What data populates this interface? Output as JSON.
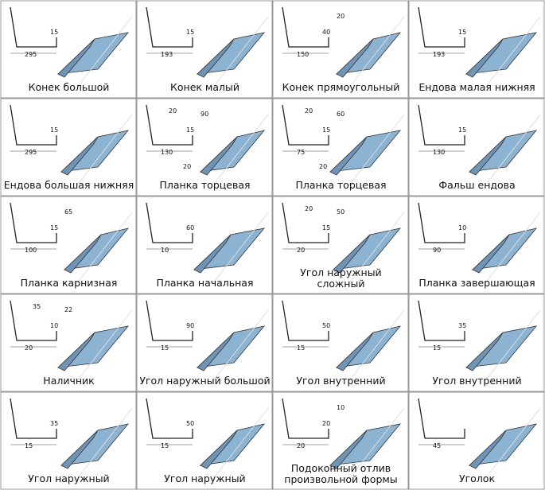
{
  "items": [
    {
      "label": "Конек большой",
      "dims": [
        "295",
        "15"
      ]
    },
    {
      "label": "Конек малый",
      "dims": [
        "193",
        "15"
      ]
    },
    {
      "label": "Конек прямоугольный",
      "dims": [
        "150",
        "40",
        "20"
      ]
    },
    {
      "label": "Ендова малая нижняя",
      "dims": [
        "193",
        "15"
      ]
    },
    {
      "label": "Ендова большая нижняя",
      "dims": [
        "295",
        "15"
      ]
    },
    {
      "label": "Планка торцевая",
      "dims": [
        "130",
        "15",
        "90",
        "20",
        "20"
      ]
    },
    {
      "label": "Планка торцевая",
      "dims": [
        "75",
        "15",
        "60",
        "20",
        "20"
      ]
    },
    {
      "label": "Фальш ендова",
      "dims": [
        "130",
        "15"
      ]
    },
    {
      "label": "Планка карнизная",
      "dims": [
        "100",
        "15",
        "65"
      ]
    },
    {
      "label": "Планка начальная",
      "dims": [
        "10",
        "60"
      ]
    },
    {
      "label": "Угол наружный сложный",
      "dims": [
        "20",
        "15",
        "50",
        "20"
      ]
    },
    {
      "label": "Планка завершающая",
      "dims": [
        "90",
        "10"
      ]
    },
    {
      "label": "Наличник",
      "dims": [
        "20",
        "10",
        "22",
        "35"
      ]
    },
    {
      "label": "Угол наружный большой",
      "dims": [
        "15",
        "90"
      ]
    },
    {
      "label": "Угол внутренний",
      "dims": [
        "15",
        "50"
      ]
    },
    {
      "label": "Угол внутренний",
      "dims": [
        "15",
        "35"
      ]
    },
    {
      "label": "Угол наружный",
      "dims": [
        "15",
        "35"
      ]
    },
    {
      "label": "Угол наружный",
      "dims": [
        "15",
        "50"
      ]
    },
    {
      "label": "Подоконный отлив произвольной формы",
      "dims": [
        "20",
        "20",
        "10"
      ]
    },
    {
      "label": "Уголок",
      "dims": [
        "45"
      ]
    }
  ]
}
